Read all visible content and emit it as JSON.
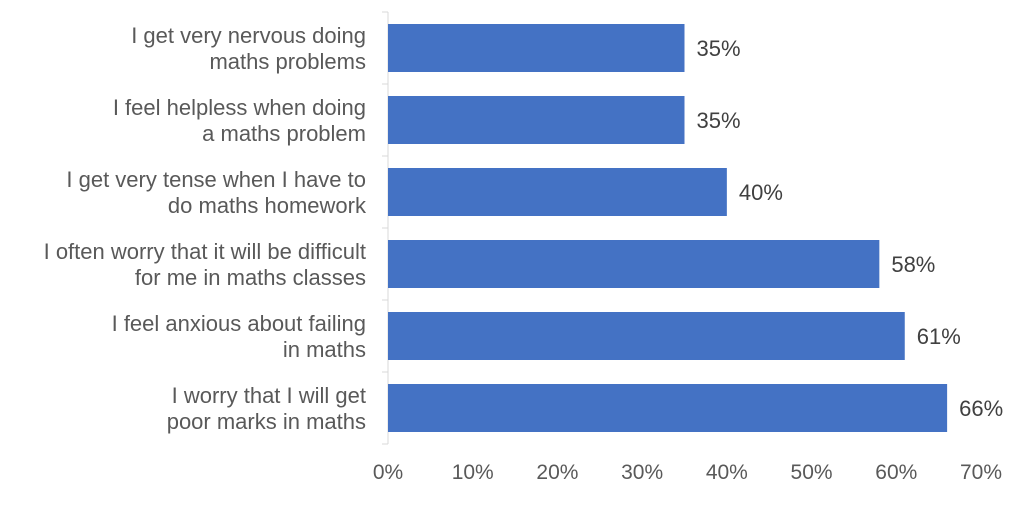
{
  "chart_data": {
    "type": "bar",
    "orientation": "horizontal",
    "categories": [
      [
        "I get very nervous doing",
        "maths problems"
      ],
      [
        "I feel helpless when doing",
        "a maths problem"
      ],
      [
        "I get very tense when I have to",
        "do maths homework"
      ],
      [
        "I often worry that it will be difficult",
        "for me in maths classes"
      ],
      [
        "I feel anxious about failing",
        "in maths"
      ],
      [
        "I worry that I will get",
        "poor marks in maths"
      ]
    ],
    "values": [
      35,
      35,
      40,
      58,
      61,
      66
    ],
    "data_labels": [
      "35%",
      "35%",
      "40%",
      "58%",
      "61%",
      "66%"
    ],
    "xlim": [
      0,
      70
    ],
    "x_ticks": [
      0,
      10,
      20,
      30,
      40,
      50,
      60,
      70
    ],
    "x_tick_labels": [
      "0%",
      "10%",
      "20%",
      "30%",
      "40%",
      "50%",
      "60%",
      "70%"
    ],
    "bar_color": "#4472C4",
    "grid": false,
    "legend": "none"
  }
}
